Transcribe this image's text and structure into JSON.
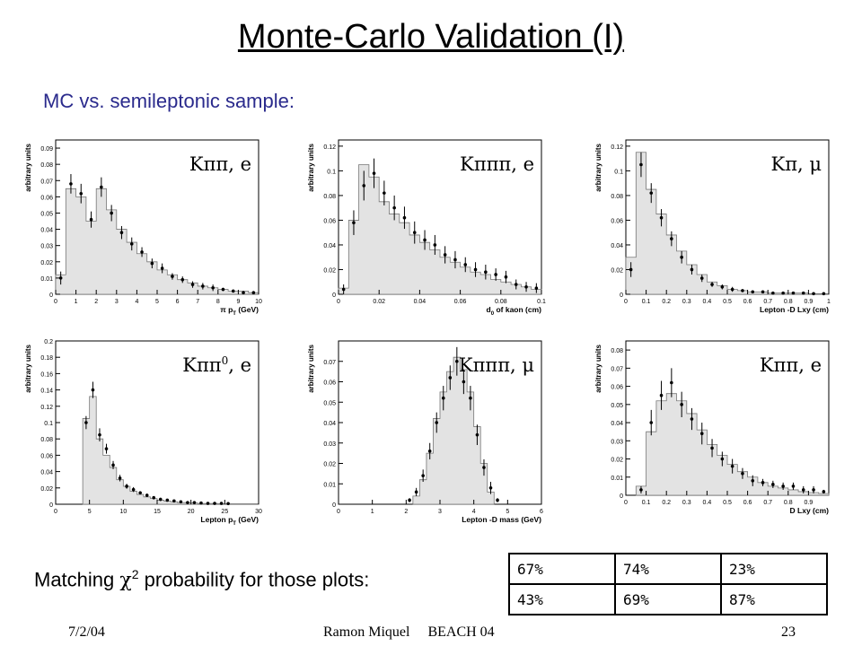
{
  "slide": {
    "title": "Monte-Carlo Validation (I)",
    "subtitle": "MC vs. semileptonic sample:",
    "chi_text_prefix": "Matching ",
    "chi_symbol": "χ",
    "chi_sup": "2",
    "chi_text_suffix": " probability for those plots:",
    "probabilities": [
      [
        "67%",
        "74%",
        "23%"
      ],
      [
        "43%",
        "69%",
        "87%"
      ]
    ],
    "footer": {
      "date": "7/2/04",
      "center": "Ramon Miquel     BEACH 04",
      "page": "23"
    }
  },
  "chart_data": [
    {
      "type": "bar",
      "label": "Kππ, e",
      "ylabel": "arbitrary units",
      "xlabel": "π p",
      "xlabel_sub": "T",
      "xlabel_unit": " (GeV)",
      "xlim": [
        0,
        10
      ],
      "ylim": [
        0,
        0.095
      ],
      "xticks": [
        0,
        1,
        2,
        3,
        4,
        5,
        6,
        7,
        8,
        9,
        10
      ],
      "xticklabels": [
        "0",
        "1",
        "2",
        "3",
        "4",
        "5",
        "6",
        "7",
        "8",
        "9",
        "10"
      ],
      "yticks": [
        0,
        0.01,
        0.02,
        0.03,
        0.04,
        0.05,
        0.06,
        0.07,
        0.08,
        0.09
      ],
      "yticklabels": [
        "0",
        "0.01",
        "0.02",
        "0.03",
        "0.04",
        "0.05",
        "0.06",
        "0.07",
        "0.08",
        "0.09"
      ],
      "hist_edges": [
        0,
        0.5,
        1,
        1.5,
        2,
        2.5,
        3,
        3.5,
        4,
        4.5,
        5,
        5.5,
        6,
        6.5,
        7,
        7.5,
        8,
        8.5,
        9,
        9.5,
        10
      ],
      "hist_values": [
        0.012,
        0.065,
        0.06,
        0.045,
        0.065,
        0.052,
        0.04,
        0.032,
        0.025,
        0.02,
        0.015,
        0.012,
        0.009,
        0.007,
        0.005,
        0.004,
        0.003,
        0.002,
        0.002,
        0.001
      ],
      "points_x": [
        0.25,
        0.75,
        1.25,
        1.75,
        2.25,
        2.75,
        3.25,
        3.75,
        4.25,
        4.75,
        5.25,
        5.75,
        6.25,
        6.75,
        7.25,
        7.75,
        8.25,
        8.75,
        9.25,
        9.75
      ],
      "points_y": [
        0.01,
        0.068,
        0.062,
        0.046,
        0.066,
        0.05,
        0.038,
        0.031,
        0.026,
        0.019,
        0.016,
        0.011,
        0.009,
        0.006,
        0.005,
        0.004,
        0.003,
        0.002,
        0.001,
        0.001
      ],
      "points_err": [
        0.004,
        0.006,
        0.006,
        0.005,
        0.006,
        0.005,
        0.004,
        0.004,
        0.003,
        0.003,
        0.003,
        0.002,
        0.002,
        0.002,
        0.002,
        0.002,
        0.001,
        0.001,
        0.001,
        0.001
      ]
    },
    {
      "type": "bar",
      "label": "Kπππ, e",
      "ylabel": "arbitrary units",
      "xlabel": "d",
      "xlabel_sub": "0",
      "xlabel_unit": " of kaon (cm)",
      "xlim": [
        0,
        0.1
      ],
      "ylim": [
        0,
        0.125
      ],
      "xticks": [
        0,
        0.02,
        0.04,
        0.06,
        0.08,
        0.1
      ],
      "xticklabels": [
        "0",
        "0.02",
        "0.04",
        "0.06",
        "0.08",
        "0.1"
      ],
      "yticks": [
        0,
        0.02,
        0.04,
        0.06,
        0.08,
        0.1,
        0.12
      ],
      "yticklabels": [
        "0",
        "0.02",
        "0.04",
        "0.06",
        "0.08",
        "0.1",
        "0.12"
      ],
      "hist_edges": [
        0,
        0.005,
        0.01,
        0.015,
        0.02,
        0.025,
        0.03,
        0.035,
        0.04,
        0.045,
        0.05,
        0.055,
        0.06,
        0.065,
        0.07,
        0.075,
        0.08,
        0.085,
        0.09,
        0.095,
        0.1
      ],
      "hist_values": [
        0.005,
        0.06,
        0.105,
        0.095,
        0.075,
        0.065,
        0.058,
        0.048,
        0.042,
        0.036,
        0.03,
        0.026,
        0.022,
        0.018,
        0.016,
        0.012,
        0.01,
        0.008,
        0.006,
        0.004
      ],
      "points_x": [
        0.0025,
        0.0075,
        0.0125,
        0.0175,
        0.0225,
        0.0275,
        0.0325,
        0.0375,
        0.0425,
        0.0475,
        0.0525,
        0.0575,
        0.0625,
        0.0675,
        0.0725,
        0.0775,
        0.0825,
        0.0875,
        0.0925,
        0.0975
      ],
      "points_y": [
        0.004,
        0.058,
        0.088,
        0.098,
        0.082,
        0.07,
        0.062,
        0.05,
        0.044,
        0.04,
        0.032,
        0.028,
        0.024,
        0.02,
        0.018,
        0.016,
        0.014,
        0.008,
        0.006,
        0.005
      ],
      "points_err": [
        0.004,
        0.01,
        0.012,
        0.012,
        0.01,
        0.01,
        0.009,
        0.009,
        0.008,
        0.008,
        0.007,
        0.007,
        0.006,
        0.006,
        0.006,
        0.005,
        0.005,
        0.004,
        0.004,
        0.004
      ]
    },
    {
      "type": "bar",
      "label": "Kπ, μ",
      "ylabel": "arbitrary units",
      "xlabel": "Lepton -D Lxy (cm)",
      "xlabel_sub": "",
      "xlabel_unit": "",
      "xlim": [
        0,
        1
      ],
      "ylim": [
        0,
        0.125
      ],
      "xticks": [
        0,
        0.1,
        0.2,
        0.3,
        0.4,
        0.5,
        0.6,
        0.7,
        0.8,
        0.9,
        1
      ],
      "xticklabels": [
        "0",
        "0.1",
        "0.2",
        "0.3",
        "0.4",
        "0.5",
        "0.6",
        "0.7",
        "0.8",
        "0.9",
        "1"
      ],
      "yticks": [
        0,
        0.02,
        0.04,
        0.06,
        0.08,
        0.1,
        0.12
      ],
      "yticklabels": [
        "0",
        "0.02",
        "0.04",
        "0.06",
        "0.08",
        "0.1",
        "0.12"
      ],
      "hist_edges": [
        0,
        0.05,
        0.1,
        0.15,
        0.2,
        0.25,
        0.3,
        0.35,
        0.4,
        0.45,
        0.5,
        0.55,
        0.6,
        0.65,
        0.7,
        0.75,
        0.8,
        0.85,
        0.9,
        0.95,
        1
      ],
      "hist_values": [
        0.03,
        0.115,
        0.085,
        0.065,
        0.048,
        0.035,
        0.024,
        0.016,
        0.01,
        0.007,
        0.004,
        0.003,
        0.002,
        0.002,
        0.001,
        0.001,
        0.001,
        0.001,
        0.0005,
        0.0005
      ],
      "points_x": [
        0.025,
        0.075,
        0.125,
        0.175,
        0.225,
        0.275,
        0.325,
        0.375,
        0.425,
        0.475,
        0.525,
        0.575,
        0.625,
        0.675,
        0.725,
        0.775,
        0.825,
        0.875,
        0.925,
        0.975
      ],
      "points_y": [
        0.02,
        0.105,
        0.082,
        0.062,
        0.045,
        0.03,
        0.02,
        0.013,
        0.008,
        0.006,
        0.004,
        0.003,
        0.002,
        0.002,
        0.001,
        0.001,
        0.001,
        0.001,
        0.0005,
        0.0005
      ],
      "points_err": [
        0.006,
        0.01,
        0.008,
        0.007,
        0.006,
        0.005,
        0.004,
        0.003,
        0.002,
        0.002,
        0.002,
        0.001,
        0.001,
        0.001,
        0.001,
        0.001,
        0.001,
        0.001,
        0.0005,
        0.0005
      ]
    },
    {
      "type": "bar",
      "label": "Kππ",
      "label_sup": "0",
      "label_suffix": ", e",
      "ylabel": "arbitrary units",
      "xlabel": "Lepton p",
      "xlabel_sub": "T",
      "xlabel_unit": " (GeV)",
      "xlim": [
        0,
        30
      ],
      "ylim": [
        0,
        0.2
      ],
      "xticks": [
        0,
        5,
        10,
        15,
        20,
        25,
        30
      ],
      "xticklabels": [
        "0",
        "5",
        "10",
        "15",
        "20",
        "25",
        "30"
      ],
      "yticks": [
        0,
        0.02,
        0.04,
        0.06,
        0.08,
        0.1,
        0.12,
        0.14,
        0.16,
        0.18,
        0.2
      ],
      "yticklabels": [
        "0",
        "0.02",
        "0.04",
        "0.06",
        "0.08",
        "0.1",
        "0.12",
        "0.14",
        "0.16",
        "0.18",
        "0.2"
      ],
      "hist_edges": [
        4,
        5,
        6,
        7,
        8,
        9,
        10,
        11,
        12,
        13,
        14,
        15,
        16,
        17,
        18,
        19,
        20,
        21,
        22,
        23,
        24,
        25,
        26,
        27,
        28,
        29,
        30
      ],
      "hist_values": [
        0.105,
        0.132,
        0.08,
        0.06,
        0.045,
        0.03,
        0.022,
        0.016,
        0.012,
        0.009,
        0.007,
        0.005,
        0.004,
        0.003,
        0.002,
        0.002,
        0.0015,
        0.001,
        0.001,
        0.001,
        0.0005,
        0.0005,
        0.0005,
        0.0005,
        0.0005,
        0.0005
      ],
      "points_x": [
        4.5,
        5.5,
        6.5,
        7.5,
        8.5,
        9.5,
        10.5,
        11.5,
        12.5,
        13.5,
        14.5,
        15.5,
        16.5,
        17.5,
        18.5,
        19.5,
        20.5,
        21.5,
        22.5,
        23.5,
        24.5,
        25.5
      ],
      "points_y": [
        0.1,
        0.14,
        0.085,
        0.068,
        0.048,
        0.032,
        0.022,
        0.018,
        0.014,
        0.011,
        0.008,
        0.006,
        0.005,
        0.004,
        0.003,
        0.002,
        0.002,
        0.0015,
        0.001,
        0.001,
        0.001,
        0.0008
      ],
      "points_err": [
        0.008,
        0.01,
        0.008,
        0.006,
        0.005,
        0.004,
        0.003,
        0.003,
        0.002,
        0.002,
        0.002,
        0.002,
        0.001,
        0.001,
        0.001,
        0.001,
        0.001,
        0.001,
        0.001,
        0.001,
        0.001,
        0.0008
      ]
    },
    {
      "type": "bar",
      "label": "Kπππ, μ",
      "ylabel": "arbitrary units",
      "xlabel": "Lepton -D mass (GeV)",
      "xlabel_sub": "",
      "xlabel_unit": "",
      "xlim": [
        0,
        6
      ],
      "ylim": [
        0,
        0.08
      ],
      "xticks": [
        0,
        1,
        2,
        3,
        4,
        5,
        6
      ],
      "xticklabels": [
        "0",
        "1",
        "2",
        "3",
        "4",
        "5",
        "6"
      ],
      "yticks": [
        0,
        0.01,
        0.02,
        0.03,
        0.04,
        0.05,
        0.06,
        0.07
      ],
      "yticklabels": [
        "0",
        "0.01",
        "0.02",
        "0.03",
        "0.04",
        "0.05",
        "0.06",
        "0.07"
      ],
      "hist_edges": [
        2.2,
        2.4,
        2.6,
        2.8,
        3.0,
        3.2,
        3.4,
        3.6,
        3.8,
        4.0,
        4.2,
        4.4,
        4.6
      ],
      "hist_values": [
        0.004,
        0.012,
        0.025,
        0.042,
        0.055,
        0.065,
        0.072,
        0.066,
        0.055,
        0.038,
        0.02,
        0.006
      ],
      "points_x": [
        2.1,
        2.3,
        2.5,
        2.7,
        2.9,
        3.1,
        3.3,
        3.5,
        3.7,
        3.9,
        4.1,
        4.3,
        4.5,
        4.7
      ],
      "points_y": [
        0.002,
        0.006,
        0.014,
        0.026,
        0.04,
        0.052,
        0.062,
        0.07,
        0.06,
        0.052,
        0.034,
        0.018,
        0.008,
        0.002
      ],
      "points_err": [
        0.001,
        0.002,
        0.003,
        0.004,
        0.005,
        0.006,
        0.006,
        0.007,
        0.006,
        0.006,
        0.005,
        0.004,
        0.003,
        0.001
      ]
    },
    {
      "type": "bar",
      "label": "Kππ, e",
      "ylabel": "arbitrary units",
      "xlabel": "D Lxy (cm)",
      "xlabel_sub": "",
      "xlabel_unit": "",
      "xlim": [
        0,
        1
      ],
      "ylim": [
        0,
        0.085
      ],
      "xticks": [
        0,
        0.1,
        0.2,
        0.3,
        0.4,
        0.5,
        0.6,
        0.7,
        0.8,
        0.9
      ],
      "xticklabels": [
        "0",
        "0.1",
        "0.2",
        "0.3",
        "0.4",
        "0.5",
        "0.6",
        "0.7",
        "0.8",
        "0.9"
      ],
      "yticks": [
        0,
        0.01,
        0.02,
        0.03,
        0.04,
        0.05,
        0.06,
        0.07,
        0.08
      ],
      "yticklabels": [
        "0",
        "0.01",
        "0.02",
        "0.03",
        "0.04",
        "0.05",
        "0.06",
        "0.07",
        "0.08"
      ],
      "hist_edges": [
        0.05,
        0.1,
        0.15,
        0.2,
        0.25,
        0.3,
        0.35,
        0.4,
        0.45,
        0.5,
        0.55,
        0.6,
        0.65,
        0.7,
        0.75,
        0.8,
        0.85,
        0.9,
        0.95,
        1
      ],
      "hist_values": [
        0.005,
        0.035,
        0.052,
        0.056,
        0.052,
        0.045,
        0.036,
        0.028,
        0.022,
        0.017,
        0.013,
        0.01,
        0.007,
        0.005,
        0.004,
        0.003,
        0.002,
        0.0015,
        0.001
      ],
      "points_x": [
        0.075,
        0.125,
        0.175,
        0.225,
        0.275,
        0.325,
        0.375,
        0.425,
        0.475,
        0.525,
        0.575,
        0.625,
        0.675,
        0.725,
        0.775,
        0.825,
        0.875,
        0.925,
        0.975
      ],
      "points_y": [
        0.003,
        0.04,
        0.055,
        0.062,
        0.05,
        0.042,
        0.034,
        0.026,
        0.02,
        0.016,
        0.012,
        0.008,
        0.007,
        0.006,
        0.005,
        0.005,
        0.003,
        0.003,
        0.002
      ],
      "points_err": [
        0.002,
        0.007,
        0.008,
        0.008,
        0.007,
        0.006,
        0.006,
        0.005,
        0.004,
        0.004,
        0.003,
        0.003,
        0.002,
        0.002,
        0.002,
        0.002,
        0.002,
        0.002,
        0.001
      ]
    }
  ]
}
